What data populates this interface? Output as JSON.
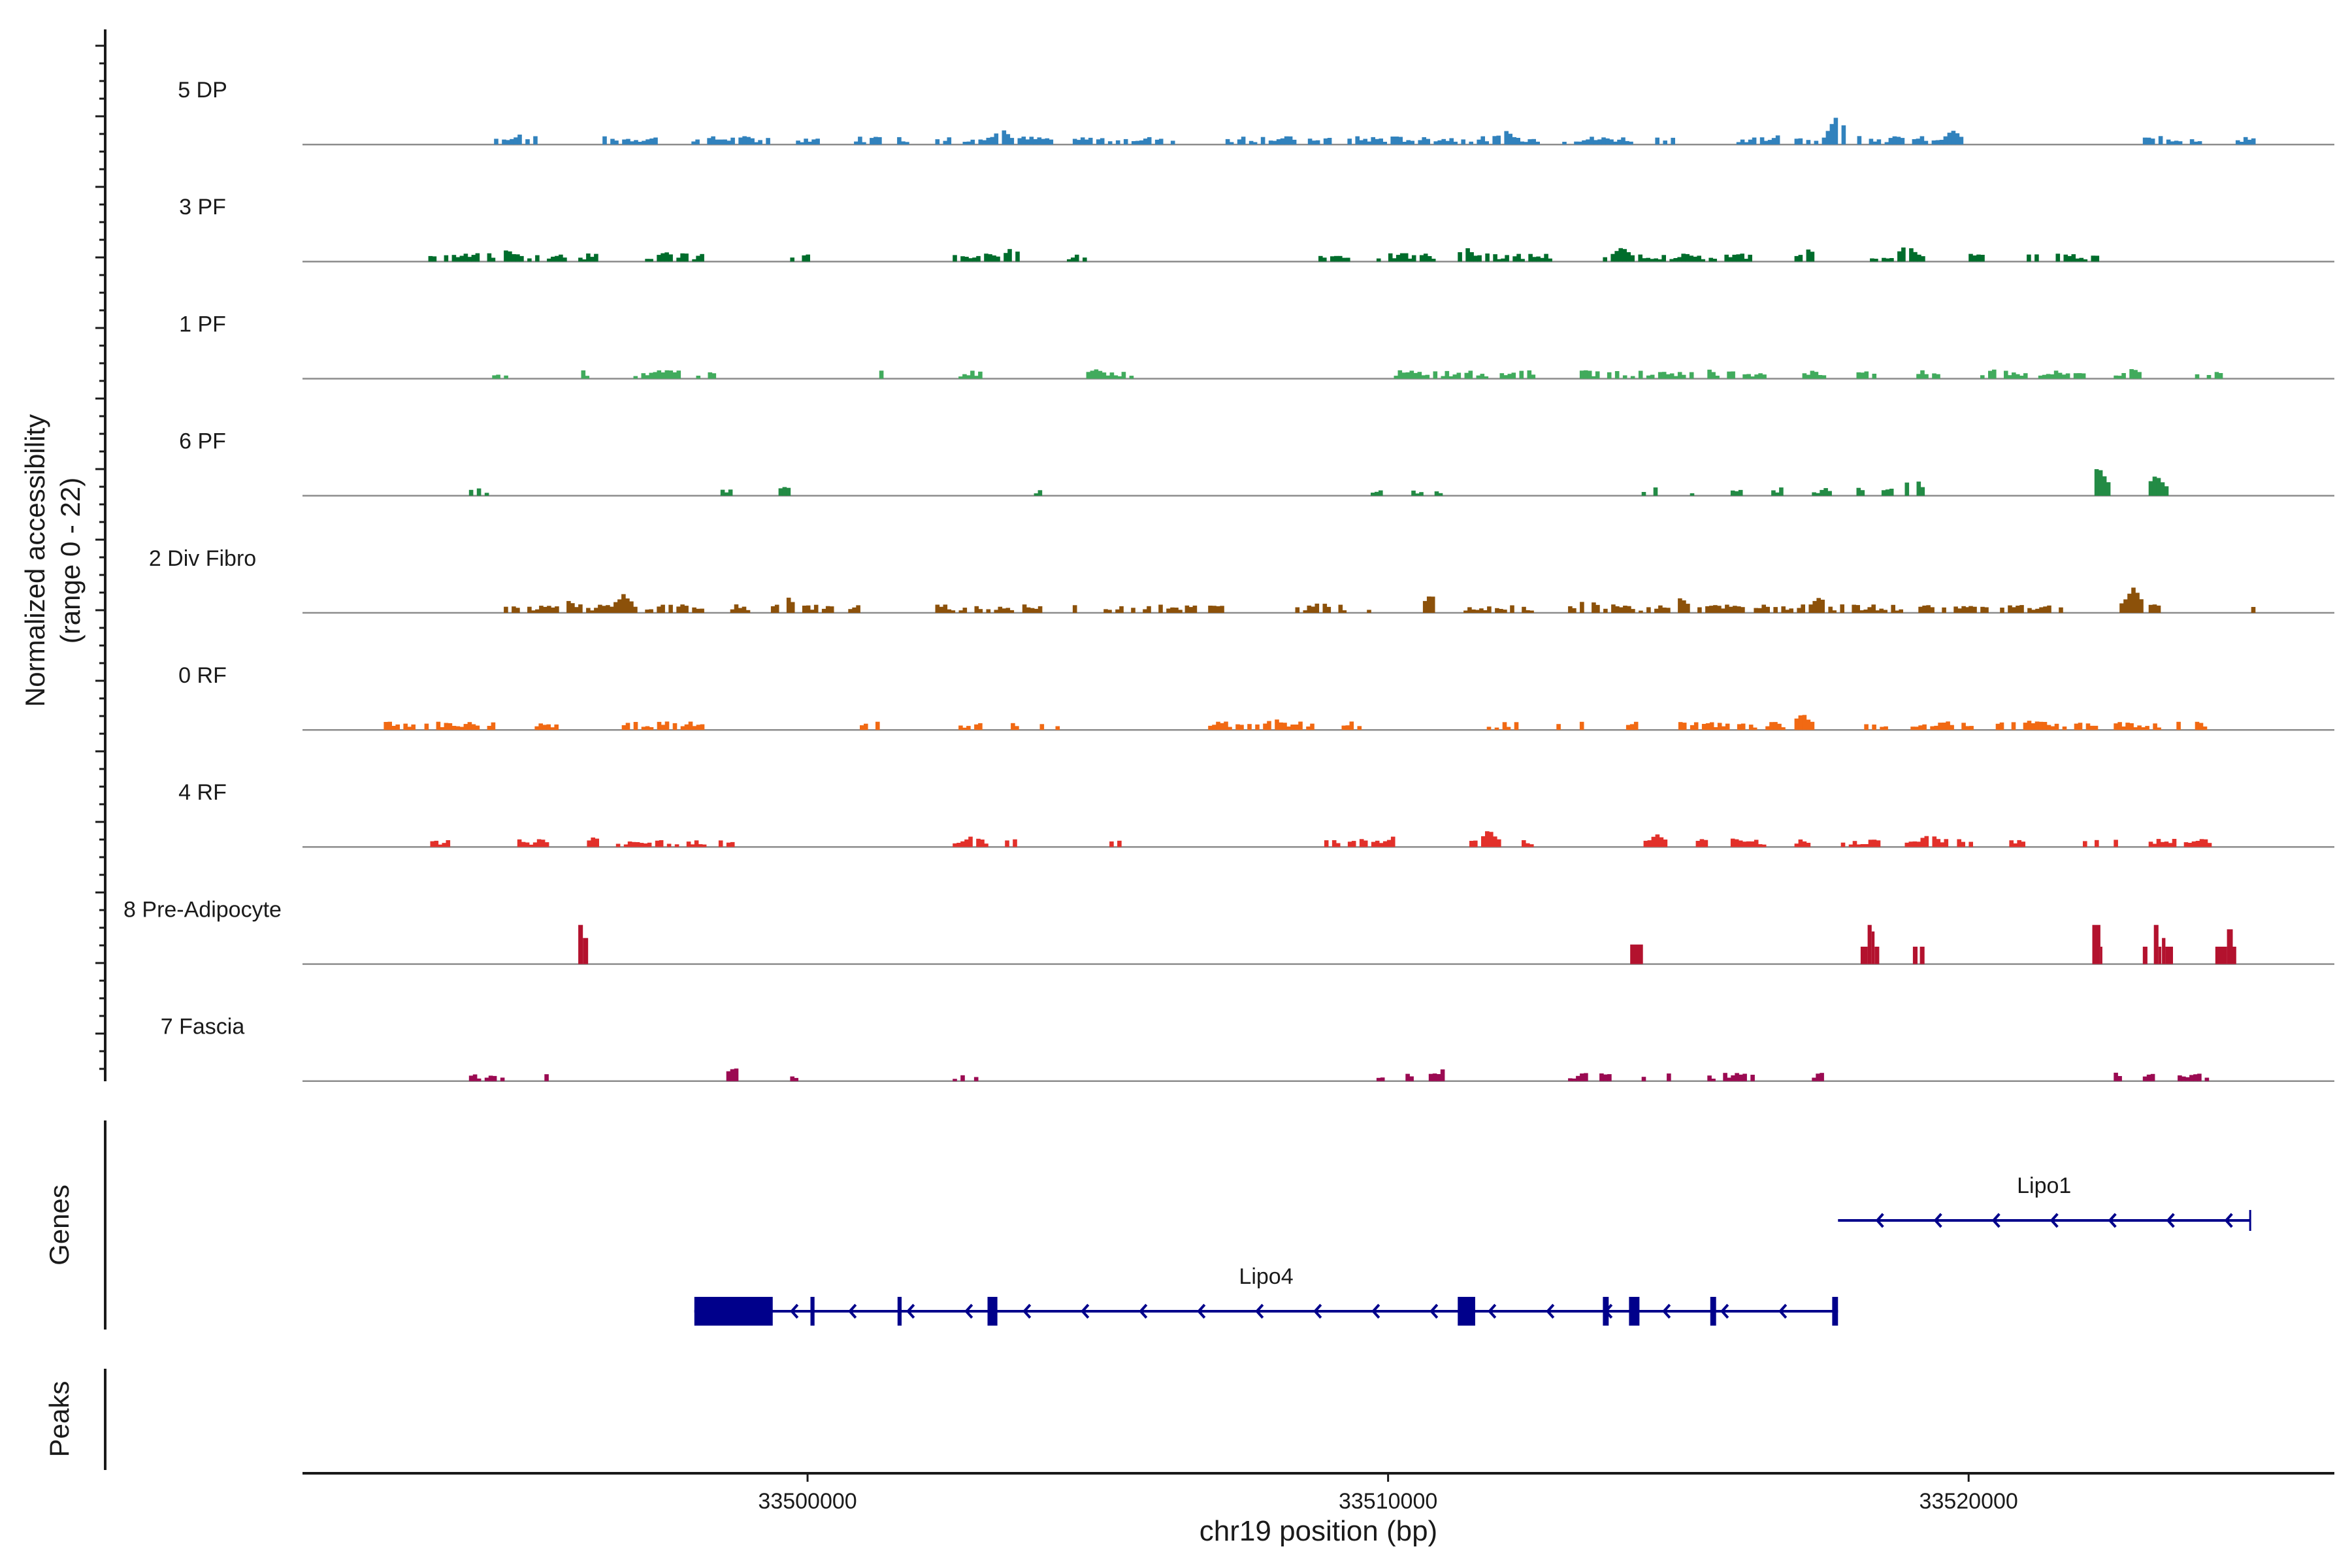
{
  "chart_data": {
    "type": "area",
    "title": "",
    "ylabel_line1": "Normalized accessibility",
    "ylabel_line2": "(range 0 - 22)",
    "ylim": [
      0,
      22
    ],
    "xlabel": "chr19 position (bp)",
    "xlim": [
      33491300,
      33526300
    ],
    "x_ticks": [
      33500000,
      33510000,
      33520000
    ],
    "x_tick_labels": [
      "33500000",
      "33510000",
      "33520000"
    ],
    "genes_label": "Genes",
    "peaks_label": "Peaks",
    "series": [
      {
        "name": "5 DP",
        "color": "#3182bd",
        "regions": [
          [
            33494600,
            33495300
          ],
          [
            33496400,
            33497400
          ],
          [
            33498000,
            33499300
          ],
          [
            33499800,
            33500200
          ],
          [
            33500800,
            33501700
          ],
          [
            33502200,
            33504200
          ],
          [
            33504500,
            33506300
          ],
          [
            33507200,
            33509000
          ],
          [
            33509300,
            33512600
          ],
          [
            33513000,
            33514200
          ],
          [
            33514600,
            33514900
          ],
          [
            33516000,
            33516800
          ],
          [
            33517000,
            33519900
          ],
          [
            33523000,
            33524200
          ],
          [
            33524600,
            33524900
          ]
        ],
        "peaks": [
          [
            33495000,
            2.0
          ],
          [
            33503300,
            3.5
          ],
          [
            33512000,
            3.0
          ],
          [
            33516800,
            3.0
          ],
          [
            33517700,
            6.5
          ],
          [
            33519700,
            3.0
          ],
          [
            33524300,
            2.0
          ]
        ]
      },
      {
        "name": "3 PF",
        "color": "#006d2c",
        "regions": [
          [
            33493400,
            33494600
          ],
          [
            33494700,
            33496500
          ],
          [
            33497200,
            33498200
          ],
          [
            33499700,
            33500000
          ],
          [
            33502500,
            33503700
          ],
          [
            33504400,
            33504800
          ],
          [
            33508800,
            33509300
          ],
          [
            33509800,
            33510800
          ],
          [
            33511200,
            33512800
          ],
          [
            33513700,
            33516400
          ],
          [
            33517000,
            33517400
          ],
          [
            33518300,
            33519200
          ],
          [
            33520000,
            33520300
          ],
          [
            33521000,
            33521200
          ],
          [
            33521500,
            33522200
          ]
        ],
        "peaks": [
          [
            33494800,
            2.5
          ],
          [
            33497500,
            2.0
          ],
          [
            33503500,
            3.0
          ],
          [
            33511300,
            3.0
          ],
          [
            33514000,
            3.0
          ],
          [
            33518900,
            3.5
          ],
          [
            33517200,
            2.5
          ]
        ]
      },
      {
        "name": "1 PF",
        "color": "#41ab5d",
        "regions": [
          [
            33494500,
            33494800
          ],
          [
            33496100,
            33496400
          ],
          [
            33497000,
            33498400
          ],
          [
            33501100,
            33501300
          ],
          [
            33502600,
            33503000
          ],
          [
            33504800,
            33505600
          ],
          [
            33510100,
            33512800
          ],
          [
            33513300,
            33515200
          ],
          [
            33515500,
            33516500
          ],
          [
            33517000,
            33517500
          ],
          [
            33518000,
            33518400
          ],
          [
            33519100,
            33519500
          ],
          [
            33520200,
            33521000
          ],
          [
            33521200,
            33522000
          ],
          [
            33522500,
            33523000
          ],
          [
            33523900,
            33524400
          ]
        ],
        "peaks": [
          [
            33497800,
            2.0
          ],
          [
            33504900,
            2.0
          ],
          [
            33512300,
            2.0
          ],
          [
            33515400,
            2.5
          ],
          [
            33520400,
            2.0
          ],
          [
            33522800,
            2.0
          ]
        ]
      },
      {
        "name": "6 PF",
        "color": "#238b45",
        "regions": [
          [
            33494100,
            33494500
          ],
          [
            33498500,
            33498800
          ],
          [
            33499500,
            33499700
          ],
          [
            33503900,
            33504000
          ],
          [
            33504500,
            33504600
          ],
          [
            33509700,
            33509900
          ],
          [
            33510400,
            33510600
          ],
          [
            33510800,
            33510900
          ],
          [
            33514300,
            33514600
          ],
          [
            33515200,
            33515300
          ],
          [
            33515900,
            33516100
          ],
          [
            33516600,
            33516800
          ],
          [
            33517300,
            33517600
          ],
          [
            33518000,
            33518200
          ],
          [
            33518500,
            33518700
          ],
          [
            33518900,
            33519200
          ],
          [
            33522100,
            33522400
          ],
          [
            33523100,
            33523400
          ]
        ],
        "peaks": [
          [
            33499600,
            2.0
          ],
          [
            33519000,
            4.5
          ],
          [
            33522200,
            6.5
          ],
          [
            33523200,
            4.5
          ]
        ]
      },
      {
        "name": "2 Div Fibro",
        "color": "#8c510a",
        "regions": [
          [
            33494700,
            33497000
          ],
          [
            33497200,
            33498200
          ],
          [
            33498600,
            33499000
          ],
          [
            33499300,
            33500500
          ],
          [
            33500700,
            33500900
          ],
          [
            33502200,
            33503500
          ],
          [
            33503700,
            33504000
          ],
          [
            33504500,
            33504600
          ],
          [
            33505100,
            33506400
          ],
          [
            33506500,
            33506700
          ],
          [
            33506900,
            33507200
          ],
          [
            33508400,
            33509300
          ],
          [
            33509500,
            33509700
          ],
          [
            33510600,
            33510800
          ],
          [
            33511300,
            33512000
          ],
          [
            33512100,
            33512500
          ],
          [
            33513100,
            33516100
          ],
          [
            33516300,
            33518800
          ],
          [
            33519000,
            33520000
          ],
          [
            33520000,
            33521600
          ],
          [
            33522600,
            33523000
          ],
          [
            33523100,
            33523300
          ],
          [
            33524800,
            33524900
          ]
        ],
        "peaks": [
          [
            33495800,
            3.0
          ],
          [
            33496800,
            4.0
          ],
          [
            33499600,
            3.5
          ],
          [
            33508800,
            2.5
          ],
          [
            33510700,
            4.0
          ],
          [
            33513400,
            3.5
          ],
          [
            33515000,
            3.0
          ],
          [
            33517400,
            3.5
          ],
          [
            33522800,
            5.5
          ]
        ]
      },
      {
        "name": "0 RF",
        "color": "#f16913",
        "regions": [
          [
            33492700,
            33493200
          ],
          [
            33493400,
            33494600
          ],
          [
            33495300,
            33495700
          ],
          [
            33496800,
            33498200
          ],
          [
            33500900,
            33501200
          ],
          [
            33502600,
            33503000
          ],
          [
            33503500,
            33503700
          ],
          [
            33504000,
            33504400
          ],
          [
            33506900,
            33508700
          ],
          [
            33509200,
            33509500
          ],
          [
            33511700,
            33512200
          ],
          [
            33512900,
            33513000
          ],
          [
            33513300,
            33513400
          ],
          [
            33514100,
            33514300
          ],
          [
            33515000,
            33516300
          ],
          [
            33516500,
            33516800
          ],
          [
            33517000,
            33517400
          ],
          [
            33518200,
            33518600
          ],
          [
            33519000,
            33520100
          ],
          [
            33520400,
            33522200
          ],
          [
            33522500,
            33523600
          ],
          [
            33523900,
            33524100
          ]
        ],
        "peaks": [
          [
            33508000,
            2.5
          ],
          [
            33514300,
            2.0
          ],
          [
            33517100,
            3.5
          ],
          [
            33521000,
            2.0
          ],
          [
            33523500,
            2.5
          ]
        ]
      },
      {
        "name": "4 RF",
        "color": "#e2302a",
        "regions": [
          [
            33493500,
            33493800
          ],
          [
            33495000,
            33495500
          ],
          [
            33496200,
            33496400
          ],
          [
            33496700,
            33498200
          ],
          [
            33498400,
            33498700
          ],
          [
            33502500,
            33503100
          ],
          [
            33503400,
            33503600
          ],
          [
            33505200,
            33505400
          ],
          [
            33508900,
            33510100
          ],
          [
            33511400,
            33511900
          ],
          [
            33512300,
            33512500
          ],
          [
            33514400,
            33514800
          ],
          [
            33515300,
            33515600
          ],
          [
            33515900,
            33516500
          ],
          [
            33517000,
            33517300
          ],
          [
            33517800,
            33518500
          ],
          [
            33518900,
            33519600
          ],
          [
            33519800,
            33520100
          ],
          [
            33520700,
            33521000
          ],
          [
            33521900,
            33522200
          ],
          [
            33522500,
            33522700
          ],
          [
            33523100,
            33524200
          ]
        ],
        "peaks": [
          [
            33496300,
            2.0
          ],
          [
            33502800,
            2.5
          ],
          [
            33510100,
            2.5
          ],
          [
            33511700,
            3.5
          ],
          [
            33514600,
            2.5
          ],
          [
            33517400,
            2.5
          ],
          [
            33519300,
            3.0
          ],
          [
            33521800,
            3.0
          ]
        ]
      },
      {
        "name": "8 Pre-Adipocyte",
        "color": "#b3122e",
        "regions": [],
        "peaks": [],
        "blocks": [
          [
            33496050,
            33496130,
            18
          ],
          [
            33496130,
            33496220,
            12
          ],
          [
            33514170,
            33514390,
            9
          ],
          [
            33518140,
            33518260,
            8
          ],
          [
            33518260,
            33518330,
            18
          ],
          [
            33518330,
            33518380,
            15
          ],
          [
            33518380,
            33518460,
            8
          ],
          [
            33519040,
            33519120,
            8
          ],
          [
            33519160,
            33519240,
            8
          ],
          [
            33522130,
            33522270,
            18
          ],
          [
            33522270,
            33522300,
            8
          ],
          [
            33523000,
            33523080,
            8
          ],
          [
            33523190,
            33523270,
            18
          ],
          [
            33523270,
            33523320,
            8
          ],
          [
            33523330,
            33523390,
            12
          ],
          [
            33523390,
            33523520,
            8
          ],
          [
            33524250,
            33524450,
            8
          ],
          [
            33524450,
            33524550,
            16
          ],
          [
            33524550,
            33524610,
            8
          ]
        ]
      },
      {
        "name": "7 Fascia",
        "color": "#9b0a52",
        "regions": [
          [
            33494100,
            33494800
          ],
          [
            33495400,
            33495500
          ],
          [
            33498600,
            33498800
          ],
          [
            33499700,
            33499900
          ],
          [
            33502500,
            33502700
          ],
          [
            33502800,
            33502900
          ],
          [
            33509800,
            33509900
          ],
          [
            33510300,
            33510400
          ],
          [
            33510700,
            33511100
          ],
          [
            33513100,
            33513800
          ],
          [
            33514300,
            33514400
          ],
          [
            33514800,
            33515000
          ],
          [
            33515500,
            33516300
          ],
          [
            33517300,
            33517500
          ],
          [
            33522500,
            33522700
          ],
          [
            33523000,
            33523200
          ],
          [
            33523600,
            33524000
          ],
          [
            33524000,
            33524200
          ]
        ],
        "peaks": [
          [
            33498700,
            3.0
          ],
          [
            33511000,
            3.5
          ],
          [
            33513400,
            2.0
          ],
          [
            33516400,
            2.0
          ]
        ]
      }
    ],
    "genes": [
      {
        "name": "Lipo1",
        "strand": "-",
        "start": 33517750,
        "end": 33524850,
        "exons": [],
        "cds": []
      },
      {
        "name": "Lipo4",
        "strand": "-",
        "start": 33498050,
        "end": 33517750,
        "exons": [
          [
            33500050,
            33500120
          ],
          [
            33501550,
            33501620
          ],
          [
            33513700,
            33513800
          ],
          [
            33514150,
            33514330
          ],
          [
            33515550,
            33515650
          ],
          [
            33517650,
            33517750
          ]
        ],
        "cds": [
          [
            33498050,
            33499400
          ],
          [
            33503100,
            33503270
          ],
          [
            33511200,
            33511500
          ]
        ]
      }
    ],
    "peaks_track": []
  }
}
